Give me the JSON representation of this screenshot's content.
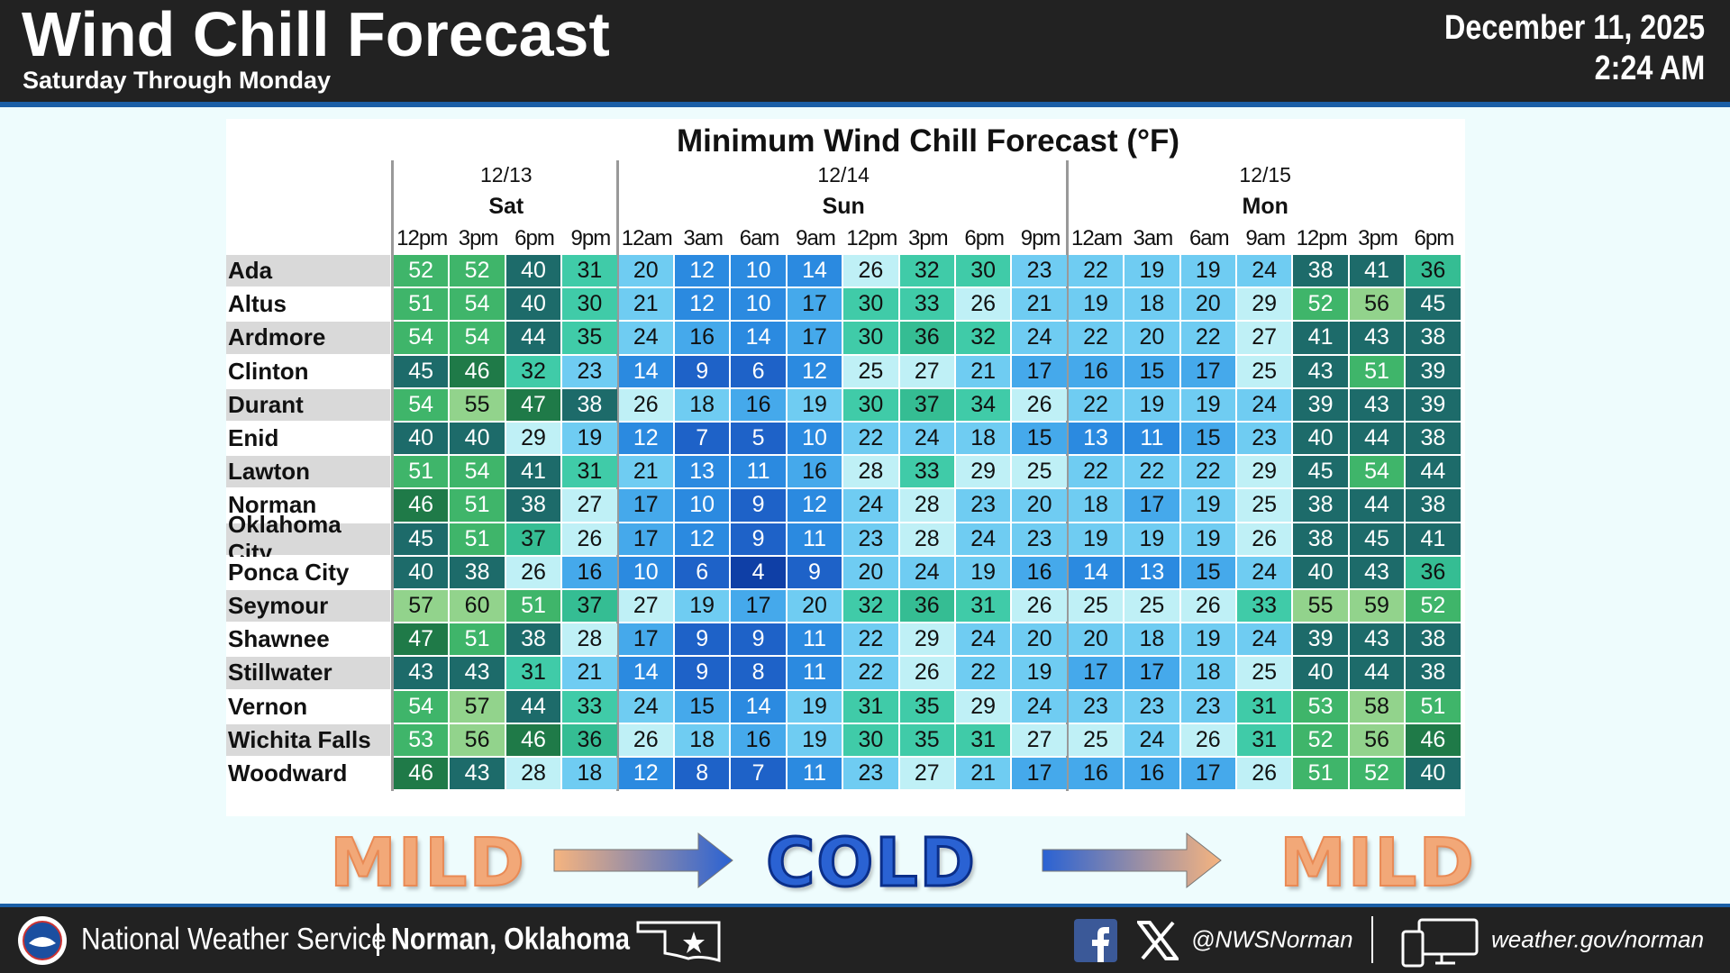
{
  "header": {
    "title": "Wind Chill Forecast",
    "subtitle": "Saturday Through Monday",
    "date": "December 11, 2025",
    "time": "2:24 AM"
  },
  "table": {
    "title": "Minimum Wind Chill Forecast (°F)",
    "days": [
      {
        "date": "12/13",
        "day": "Sat",
        "times": [
          "12pm",
          "3pm",
          "6pm",
          "9pm"
        ]
      },
      {
        "date": "12/14",
        "day": "Sun",
        "times": [
          "12am",
          "3am",
          "6am",
          "9am",
          "12pm",
          "3pm",
          "6pm",
          "9pm"
        ]
      },
      {
        "date": "12/15",
        "day": "Mon",
        "times": [
          "12am",
          "3am",
          "6am",
          "9am",
          "12pm",
          "3pm",
          "6pm"
        ]
      }
    ],
    "rows": [
      {
        "location": "Ada",
        "values": [
          52,
          52,
          40,
          31,
          20,
          12,
          10,
          14,
          26,
          32,
          30,
          23,
          22,
          19,
          19,
          24,
          38,
          41,
          36
        ]
      },
      {
        "location": "Altus",
        "values": [
          51,
          54,
          40,
          30,
          21,
          12,
          10,
          17,
          30,
          33,
          26,
          21,
          19,
          18,
          20,
          29,
          52,
          56,
          45
        ]
      },
      {
        "location": "Ardmore",
        "values": [
          54,
          54,
          44,
          35,
          24,
          16,
          14,
          17,
          30,
          36,
          32,
          24,
          22,
          20,
          22,
          27,
          41,
          43,
          38
        ]
      },
      {
        "location": "Clinton",
        "values": [
          45,
          46,
          32,
          23,
          14,
          9,
          6,
          12,
          25,
          27,
          21,
          17,
          16,
          15,
          17,
          25,
          43,
          51,
          39
        ]
      },
      {
        "location": "Durant",
        "values": [
          54,
          55,
          47,
          38,
          26,
          18,
          16,
          19,
          30,
          37,
          34,
          26,
          22,
          19,
          19,
          24,
          39,
          43,
          39
        ]
      },
      {
        "location": "Enid",
        "values": [
          40,
          40,
          29,
          19,
          12,
          7,
          5,
          10,
          22,
          24,
          18,
          15,
          13,
          11,
          15,
          23,
          40,
          44,
          38
        ]
      },
      {
        "location": "Lawton",
        "values": [
          51,
          54,
          41,
          31,
          21,
          13,
          11,
          16,
          28,
          33,
          29,
          25,
          22,
          22,
          22,
          29,
          45,
          54,
          44
        ]
      },
      {
        "location": "Norman",
        "values": [
          46,
          51,
          38,
          27,
          17,
          10,
          9,
          12,
          24,
          28,
          23,
          20,
          18,
          17,
          19,
          25,
          38,
          44,
          38
        ]
      },
      {
        "location": "Oklahoma City",
        "values": [
          45,
          51,
          37,
          26,
          17,
          12,
          9,
          11,
          23,
          28,
          24,
          23,
          19,
          19,
          19,
          26,
          38,
          45,
          41
        ]
      },
      {
        "location": "Ponca City",
        "values": [
          40,
          38,
          26,
          16,
          10,
          6,
          4,
          9,
          20,
          24,
          19,
          16,
          14,
          13,
          15,
          24,
          40,
          43,
          36
        ]
      },
      {
        "location": "Seymour",
        "values": [
          57,
          60,
          51,
          37,
          27,
          19,
          17,
          20,
          32,
          36,
          31,
          26,
          25,
          25,
          26,
          33,
          55,
          59,
          52
        ]
      },
      {
        "location": "Shawnee",
        "values": [
          47,
          51,
          38,
          28,
          17,
          9,
          9,
          11,
          22,
          29,
          24,
          20,
          20,
          18,
          19,
          24,
          39,
          43,
          38
        ]
      },
      {
        "location": "Stillwater",
        "values": [
          43,
          43,
          31,
          21,
          14,
          9,
          8,
          11,
          22,
          26,
          22,
          19,
          17,
          17,
          18,
          25,
          40,
          44,
          38
        ]
      },
      {
        "location": "Vernon",
        "values": [
          54,
          57,
          44,
          33,
          24,
          15,
          14,
          19,
          31,
          35,
          29,
          24,
          23,
          23,
          23,
          31,
          53,
          58,
          51
        ]
      },
      {
        "location": "Wichita Falls",
        "values": [
          53,
          56,
          46,
          36,
          26,
          18,
          16,
          19,
          30,
          35,
          31,
          27,
          25,
          24,
          26,
          31,
          52,
          56,
          46
        ]
      },
      {
        "location": "Woodward",
        "values": [
          46,
          43,
          28,
          18,
          12,
          8,
          7,
          11,
          23,
          27,
          21,
          17,
          16,
          16,
          17,
          26,
          51,
          52,
          40
        ]
      }
    ]
  },
  "banner": [
    "MILD",
    "COLD",
    "MILD"
  ],
  "footer": {
    "agency": "National Weather Service",
    "office": "Norman, Oklahoma",
    "social": "@NWSNorman",
    "website": "weather.gov/norman"
  }
}
